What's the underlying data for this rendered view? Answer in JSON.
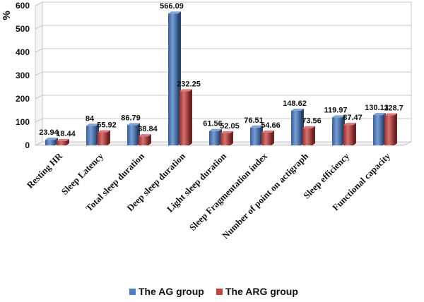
{
  "chart_data": {
    "type": "bar",
    "ylabel": "%",
    "xlabel": "",
    "ylim": [
      0,
      600
    ],
    "yticks": [
      0,
      100,
      200,
      300,
      400,
      500,
      600
    ],
    "grid": true,
    "legend": "bottom",
    "categories": [
      "Resting HR",
      "Sleep Latency",
      "Total sleep duration",
      "Deep sleep duration",
      "Light sleep duration",
      "Sleep Fragmentation index",
      "Number of point on actigraph",
      "Sleep efficiency",
      "Functional capacity"
    ],
    "series": [
      {
        "name": "The AG group",
        "color": "#4a7ec6",
        "values": [
          23.94,
          84,
          86.79,
          566.09,
          61.56,
          76.51,
          148.62,
          119.97,
          130.13
        ],
        "labels": [
          "23.94",
          "84",
          "86.79",
          "566.09",
          "61.56",
          "76.51",
          "148.62",
          "119.97",
          "130.13"
        ]
      },
      {
        "name": "The ARG group",
        "color": "#c8413f",
        "values": [
          18.44,
          55.92,
          38.84,
          232.25,
          52.05,
          54.66,
          73.56,
          87.47,
          128.7
        ],
        "labels": [
          "18.44",
          "55.92",
          "38.84",
          "232.25",
          "52.05",
          "54.66",
          "73.56",
          "87.47",
          "128.7"
        ]
      }
    ]
  }
}
